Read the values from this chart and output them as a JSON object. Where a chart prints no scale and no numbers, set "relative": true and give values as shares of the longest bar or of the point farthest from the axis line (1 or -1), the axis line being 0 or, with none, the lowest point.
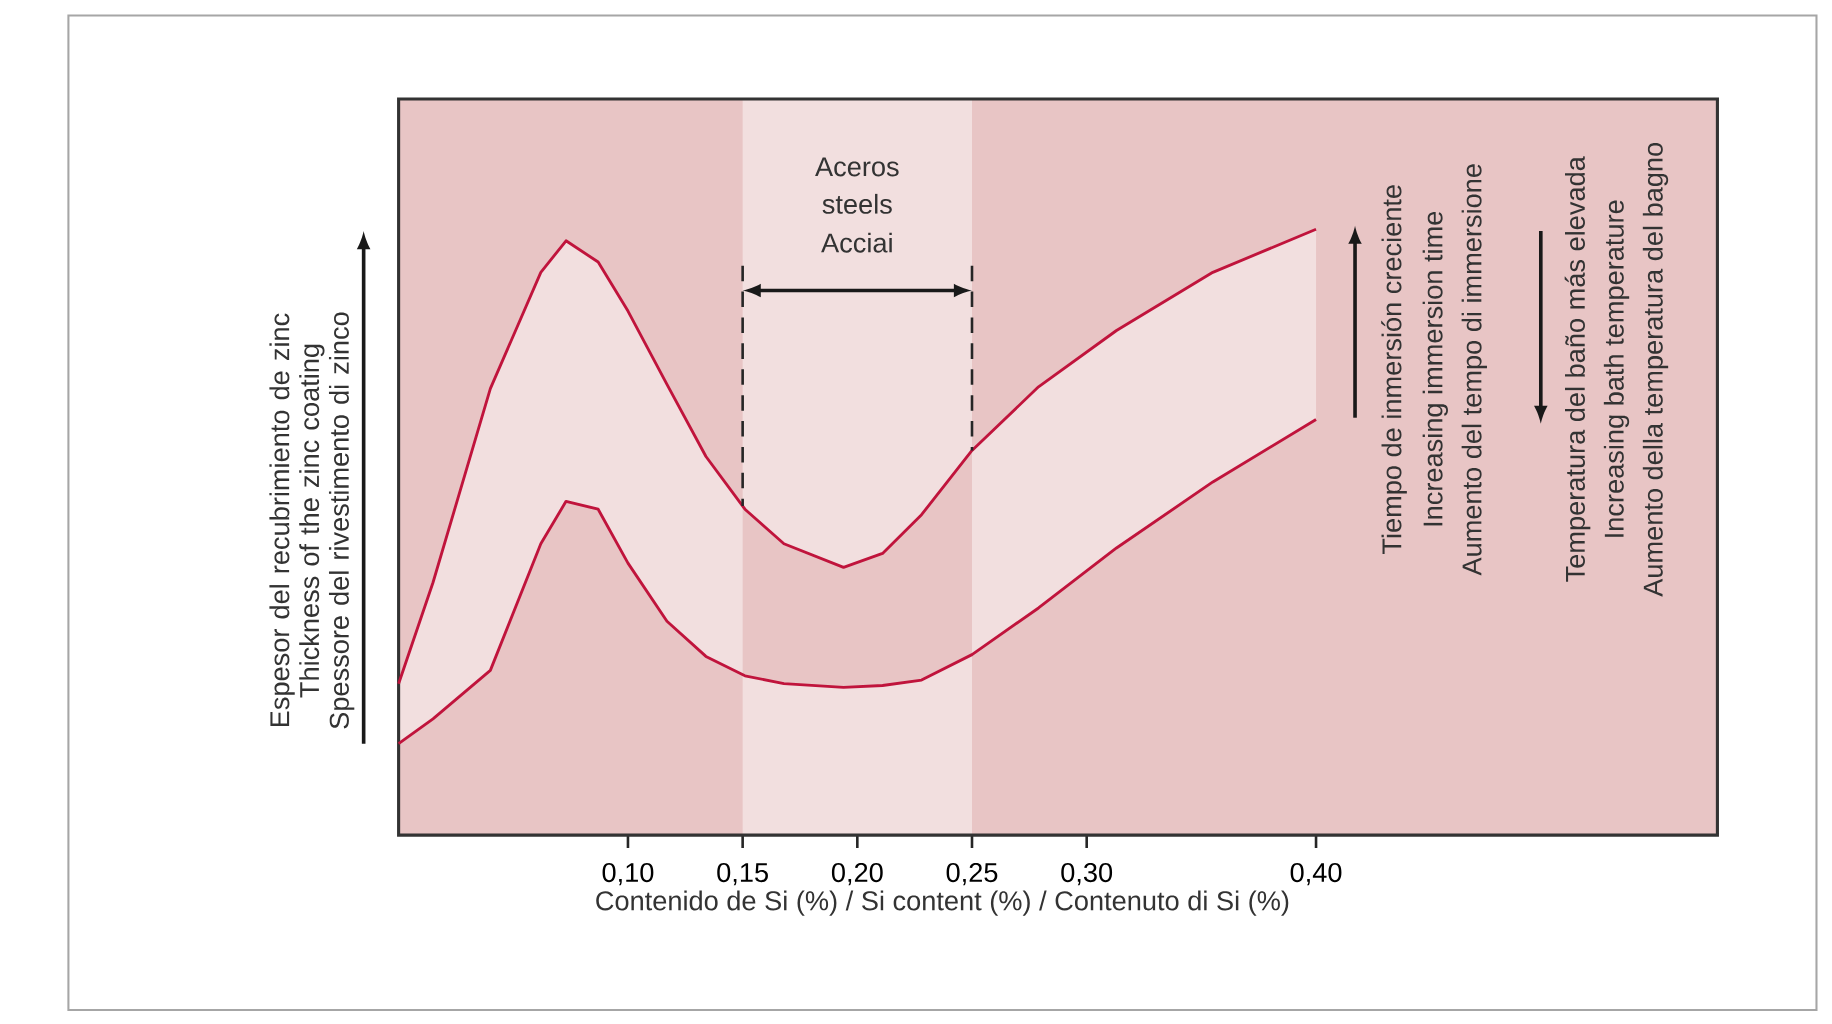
{
  "chart_data": {
    "type": "line",
    "relative": true,
    "xlabel": "Contenido de Si (%) / Si content (%) / Contenuto di Si (%)",
    "ylabel": "Espesor del recubrimiento de zinc Thickness of the zinc coating Spessore del rivestimento di zinco",
    "x": [
      0.0,
      0.015,
      0.04,
      0.062,
      0.073,
      0.087,
      0.1,
      0.117,
      0.134,
      0.151,
      0.168,
      0.194,
      0.211,
      0.228,
      0.25,
      0.279,
      0.313,
      0.355,
      0.4
    ],
    "xlim": [
      0,
      0.575
    ],
    "xticks": [
      {
        "value": 0.1,
        "label": "0,10"
      },
      {
        "value": 0.15,
        "label": "0,15"
      },
      {
        "value": 0.2,
        "label": "0,20"
      },
      {
        "value": 0.25,
        "label": "0,25"
      },
      {
        "value": 0.3,
        "label": "0,30"
      },
      {
        "value": 0.4,
        "label": "0,40"
      }
    ],
    "series": [
      {
        "color": "#c0143c",
        "values": [
          0.25,
          0.417,
          0.737,
          0.929,
          0.981,
          0.946,
          0.865,
          0.744,
          0.625,
          0.538,
          0.481,
          0.442,
          0.465,
          0.529,
          0.635,
          0.74,
          0.833,
          0.929,
          1.0
        ]
      },
      {
        "color": "#c0143c",
        "values": [
          0.151,
          0.192,
          0.272,
          0.481,
          0.551,
          0.538,
          0.449,
          0.353,
          0.295,
          0.263,
          0.25,
          0.244,
          0.247,
          0.256,
          0.298,
          0.375,
          0.474,
          0.583,
          0.686
        ]
      }
    ],
    "bands": [
      {
        "axis": "x",
        "from": 0.15,
        "to": 0.25,
        "color": "#f2dfdf"
      }
    ],
    "ref_lines": [
      {
        "axis": "x",
        "value": 0.15,
        "color": "#262626",
        "line_style": "dashed"
      },
      {
        "axis": "x",
        "value": 0.25,
        "color": "#262626",
        "line_style": "dashed"
      }
    ],
    "annotations": [
      "Aceros",
      "steels",
      "Acciai",
      "Tiempo de inmersión creciente",
      "Increasing immersion time",
      "Aumento del tempo di immersione",
      "Temperatura del baño más elevada",
      "Increasing bath temperature",
      "Aumento della temperatura del bagno"
    ],
    "grid": false,
    "marker": "none",
    "line_style": "solid"
  }
}
